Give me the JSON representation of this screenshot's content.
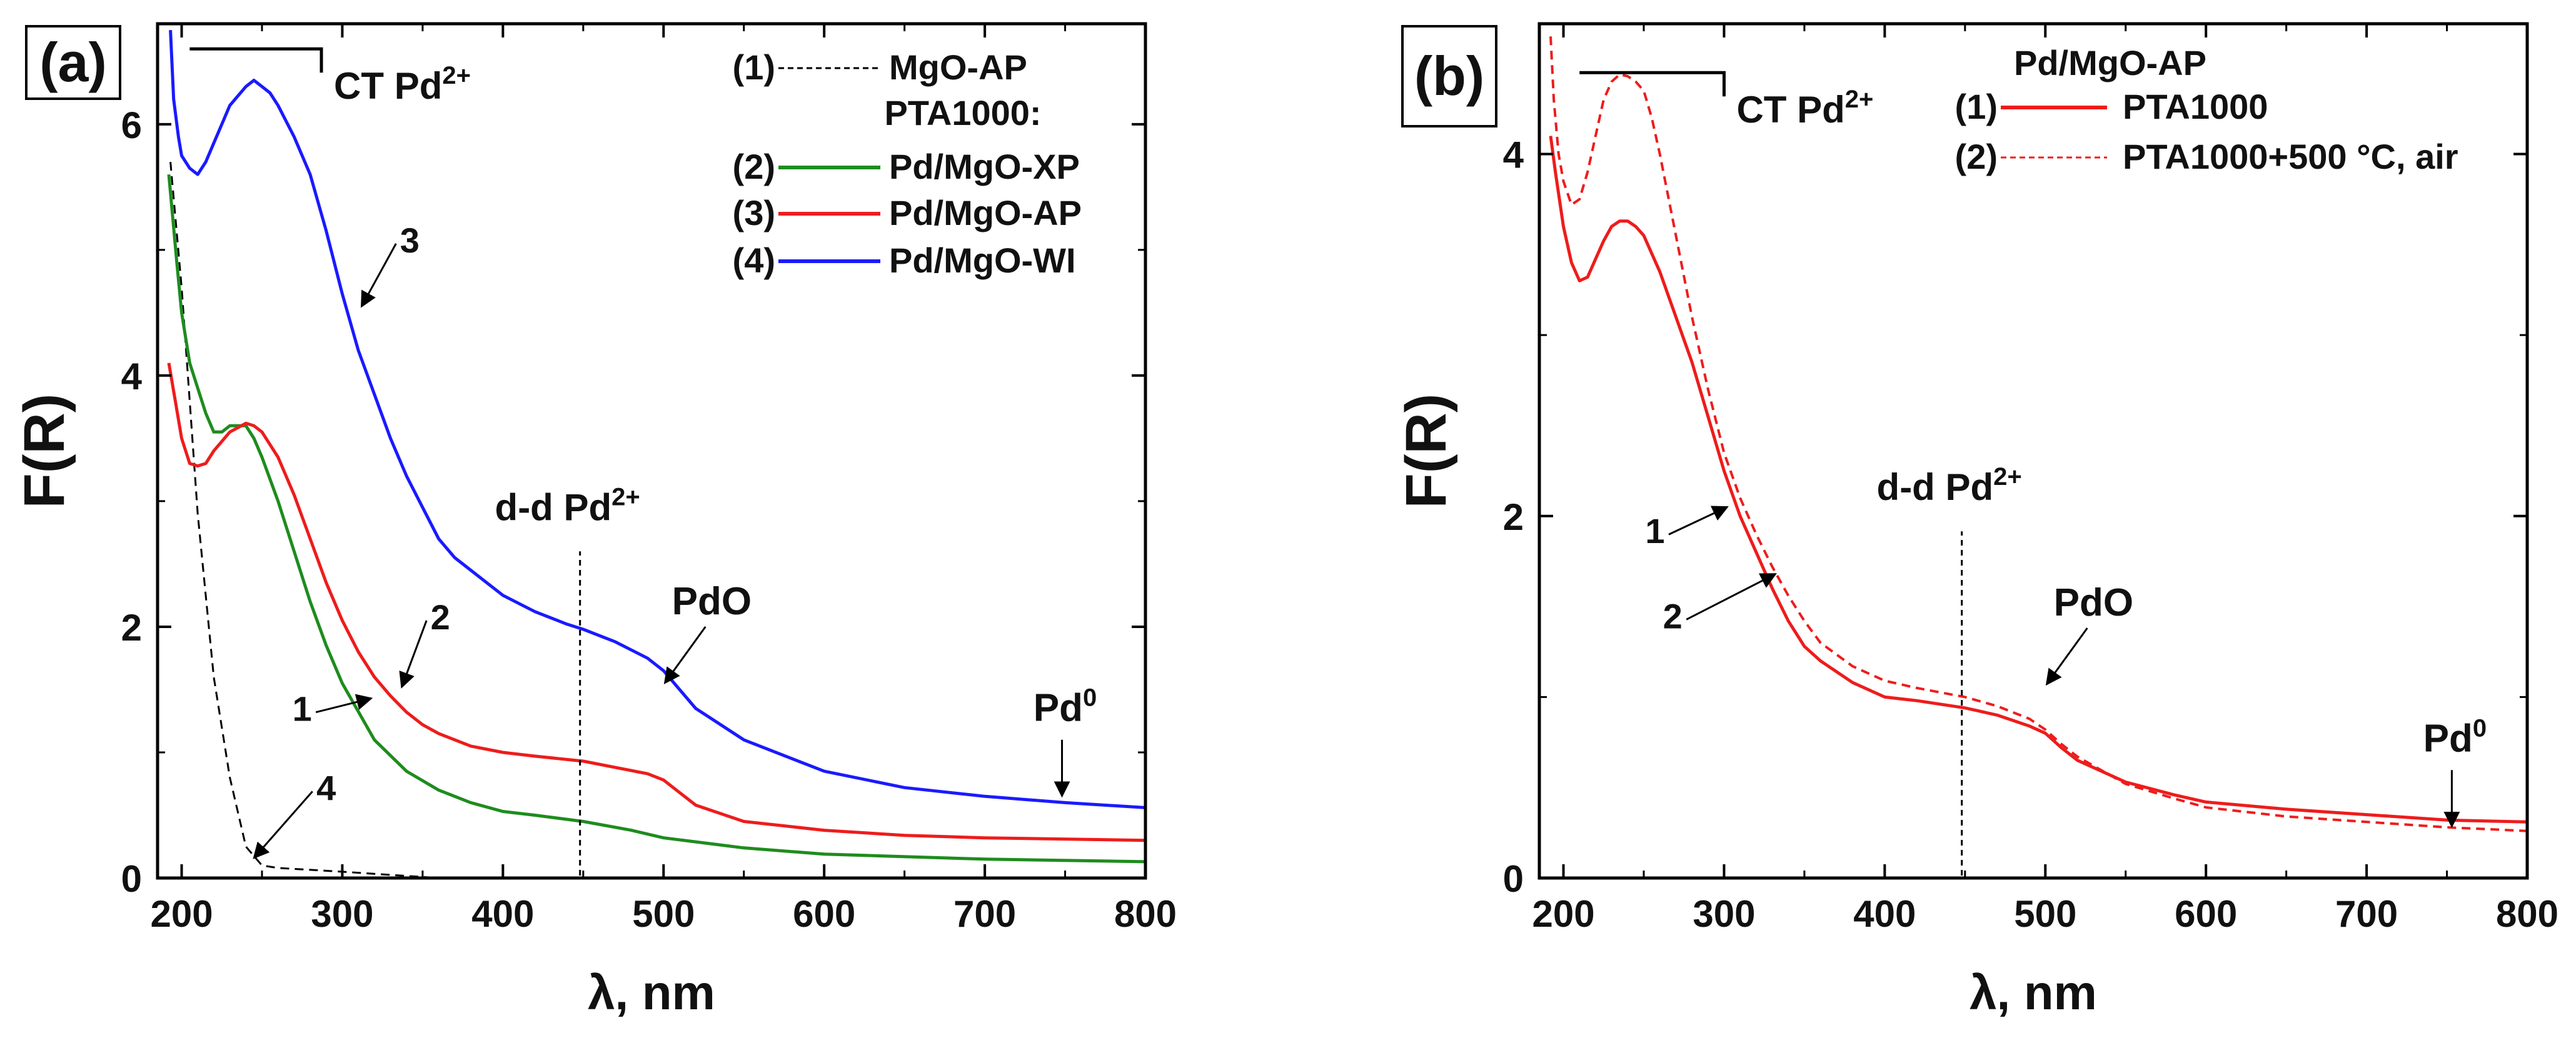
{
  "chart_data": [
    {
      "panel_label": "(a)",
      "type": "line",
      "xlabel_symbol": "λ",
      "xlabel_unit": ", nm",
      "ylabel": "F(R)",
      "xlim": [
        185,
        800
      ],
      "ylim": [
        0,
        6.8
      ],
      "xticks": [
        200,
        300,
        400,
        500,
        600,
        700,
        800
      ],
      "yticks": [
        0,
        2,
        4,
        6
      ],
      "legend": {
        "entries": [
          {
            "num": "(1)",
            "name": "MgO-AP",
            "color": "#000000",
            "dash": "dash"
          },
          {
            "header": "PTA1000:"
          },
          {
            "num": "(2)",
            "name": "Pd/MgO-XP",
            "color": "#1e8c1e",
            "dash": "solid"
          },
          {
            "num": "(3)",
            "name": "Pd/MgO-AP",
            "color": "#ee1c1c",
            "dash": "solid"
          },
          {
            "num": "(4)",
            "name": "Pd/MgO-WI",
            "color": "#1a1aff",
            "dash": "solid"
          }
        ]
      },
      "series": [
        {
          "name": "MgO-AP",
          "color": "#000000",
          "dash": "dash",
          "width": 3,
          "x": [
            193,
            200,
            210,
            220,
            230,
            240,
            250,
            260,
            300,
            360,
            400,
            500
          ],
          "y": [
            5.7,
            4.7,
            2.9,
            1.6,
            0.8,
            0.25,
            0.1,
            0.08,
            0.05,
            0.0,
            0.0,
            0.0
          ]
        },
        {
          "name": "Pd/MgO-XP",
          "color": "#1e8c1e",
          "dash": "solid",
          "width": 5,
          "x": [
            192,
            197,
            200,
            205,
            210,
            215,
            220,
            225,
            230,
            235,
            240,
            245,
            250,
            260,
            270,
            280,
            290,
            300,
            320,
            340,
            360,
            380,
            400,
            420,
            450,
            480,
            500,
            550,
            600,
            700,
            800
          ],
          "y": [
            5.6,
            4.9,
            4.5,
            4.1,
            3.9,
            3.7,
            3.55,
            3.55,
            3.6,
            3.6,
            3.6,
            3.5,
            3.35,
            3.0,
            2.6,
            2.2,
            1.85,
            1.55,
            1.1,
            0.85,
            0.7,
            0.6,
            0.53,
            0.5,
            0.45,
            0.38,
            0.32,
            0.24,
            0.19,
            0.15,
            0.13
          ]
        },
        {
          "name": "Pd/MgO-AP",
          "color": "#ee1c1c",
          "dash": "solid",
          "width": 5,
          "x": [
            192,
            196,
            200,
            205,
            210,
            215,
            220,
            230,
            240,
            245,
            250,
            260,
            270,
            280,
            290,
            300,
            310,
            320,
            330,
            340,
            350,
            360,
            380,
            400,
            420,
            450,
            470,
            490,
            500,
            510,
            520,
            550,
            600,
            650,
            700,
            800
          ],
          "y": [
            4.1,
            3.8,
            3.5,
            3.3,
            3.28,
            3.3,
            3.4,
            3.55,
            3.62,
            3.6,
            3.55,
            3.35,
            3.05,
            2.7,
            2.35,
            2.05,
            1.8,
            1.6,
            1.45,
            1.32,
            1.22,
            1.15,
            1.05,
            1.0,
            0.97,
            0.93,
            0.88,
            0.83,
            0.78,
            0.68,
            0.58,
            0.45,
            0.38,
            0.34,
            0.32,
            0.3
          ]
        },
        {
          "name": "Pd/MgO-WI",
          "color": "#1a1aff",
          "dash": "solid",
          "width": 5,
          "x": [
            193,
            195,
            198,
            200,
            205,
            210,
            215,
            220,
            225,
            230,
            240,
            245,
            250,
            255,
            260,
            270,
            280,
            290,
            300,
            310,
            320,
            330,
            340,
            350,
            360,
            370,
            380,
            400,
            420,
            440,
            450,
            470,
            490,
            500,
            510,
            520,
            550,
            600,
            650,
            700,
            750,
            800
          ],
          "y": [
            6.75,
            6.2,
            5.9,
            5.75,
            5.65,
            5.6,
            5.7,
            5.85,
            6.0,
            6.15,
            6.3,
            6.35,
            6.3,
            6.25,
            6.15,
            5.9,
            5.6,
            5.15,
            4.65,
            4.2,
            3.85,
            3.5,
            3.2,
            2.95,
            2.7,
            2.55,
            2.45,
            2.25,
            2.12,
            2.02,
            1.98,
            1.88,
            1.75,
            1.65,
            1.5,
            1.35,
            1.1,
            0.85,
            0.72,
            0.65,
            0.6,
            0.56
          ]
        }
      ],
      "ct_bracket": {
        "x_start": 205,
        "x_end": 287,
        "y": 6.6,
        "label": "CT Pd",
        "sup": "2+"
      },
      "dd_marker": {
        "x": 448,
        "y_top": 2.65,
        "label": "d-d Pd",
        "sup": "2+"
      },
      "pdo_label": {
        "text": "PdO",
        "x": 530,
        "y": 2.1
      },
      "pd0_label": {
        "text": "Pd",
        "sup": "0",
        "x": 750,
        "y": 1.25
      },
      "curve_tags": [
        {
          "text": "1",
          "tx": 275,
          "ty": 1.25,
          "ax": 318,
          "ay": 1.43
        },
        {
          "text": "2",
          "tx": 361,
          "ty": 1.98,
          "ax": 337,
          "ay": 1.52
        },
        {
          "text": "3",
          "tx": 342,
          "ty": 4.98,
          "ax": 312,
          "ay": 4.55
        },
        {
          "text": "4",
          "tx": 290,
          "ty": 0.62,
          "ax": 245,
          "ay": 0.16
        }
      ]
    },
    {
      "panel_label": "(b)",
      "type": "line",
      "xlabel_symbol": "λ",
      "xlabel_unit": ", nm",
      "ylabel": "F(R)",
      "xlim": [
        185,
        800
      ],
      "ylim": [
        0,
        4.72
      ],
      "xticks": [
        200,
        300,
        400,
        500,
        600,
        700,
        800
      ],
      "yticks": [
        0,
        2,
        4
      ],
      "legend": {
        "title": "Pd/MgO-AP",
        "entries": [
          {
            "num": "(1)",
            "name": "PTA1000",
            "color": "#ee1c1c",
            "dash": "solid"
          },
          {
            "num": "(2)",
            "name": "PTA1000+500 °C, air",
            "color": "#ee1c1c",
            "dash": "dash"
          }
        ]
      },
      "series": [
        {
          "name": "PTA1000",
          "color": "#ee1c1c",
          "dash": "solid",
          "width": 5,
          "x": [
            192,
            195,
            200,
            205,
            210,
            215,
            220,
            225,
            230,
            235,
            240,
            245,
            250,
            255,
            260,
            270,
            280,
            290,
            300,
            310,
            320,
            330,
            340,
            350,
            360,
            380,
            400,
            420,
            450,
            470,
            490,
            500,
            510,
            520,
            550,
            580,
            600,
            650,
            700,
            750,
            800
          ],
          "y": [
            4.1,
            3.9,
            3.6,
            3.4,
            3.3,
            3.32,
            3.42,
            3.52,
            3.6,
            3.63,
            3.63,
            3.6,
            3.55,
            3.45,
            3.35,
            3.1,
            2.85,
            2.55,
            2.25,
            2.0,
            1.8,
            1.6,
            1.42,
            1.28,
            1.2,
            1.08,
            1.0,
            0.98,
            0.94,
            0.9,
            0.84,
            0.8,
            0.72,
            0.65,
            0.53,
            0.46,
            0.42,
            0.38,
            0.35,
            0.32,
            0.31
          ]
        },
        {
          "name": "PTA1000+500 °C, air",
          "color": "#ee1c1c",
          "dash": "dash",
          "width": 4,
          "x": [
            192,
            194,
            197,
            200,
            205,
            210,
            215,
            220,
            225,
            230,
            235,
            240,
            245,
            250,
            255,
            260,
            270,
            280,
            290,
            300,
            310,
            320,
            330,
            340,
            350,
            360,
            380,
            400,
            420,
            450,
            470,
            490,
            500,
            510,
            520,
            550,
            580,
            600,
            650,
            700,
            750,
            800
          ],
          "y": [
            4.65,
            4.3,
            4.0,
            3.85,
            3.72,
            3.75,
            3.9,
            4.1,
            4.3,
            4.4,
            4.44,
            4.43,
            4.4,
            4.35,
            4.2,
            4.0,
            3.55,
            3.1,
            2.7,
            2.35,
            2.1,
            1.9,
            1.72,
            1.56,
            1.42,
            1.3,
            1.17,
            1.09,
            1.05,
            1.0,
            0.95,
            0.88,
            0.82,
            0.74,
            0.67,
            0.52,
            0.44,
            0.39,
            0.34,
            0.31,
            0.28,
            0.26
          ]
        }
      ],
      "ct_bracket": {
        "x_start": 210,
        "x_end": 300,
        "y": 4.45,
        "label": "CT Pd",
        "sup": "2+"
      },
      "dd_marker": {
        "x": 448,
        "y_top": 1.95,
        "label": "d-d Pd",
        "sup": "2+"
      },
      "pdo_label": {
        "text": "PdO",
        "x": 530,
        "y": 1.45
      },
      "pd0_label": {
        "text": "Pd",
        "sup": "0",
        "x": 755,
        "y": 0.7
      },
      "curve_tags": [
        {
          "text": "1",
          "tx": 257,
          "ty": 1.85,
          "ax": 302,
          "ay": 2.05
        },
        {
          "text": "2",
          "tx": 268,
          "ty": 1.38,
          "ax": 332,
          "ay": 1.68
        }
      ]
    }
  ]
}
